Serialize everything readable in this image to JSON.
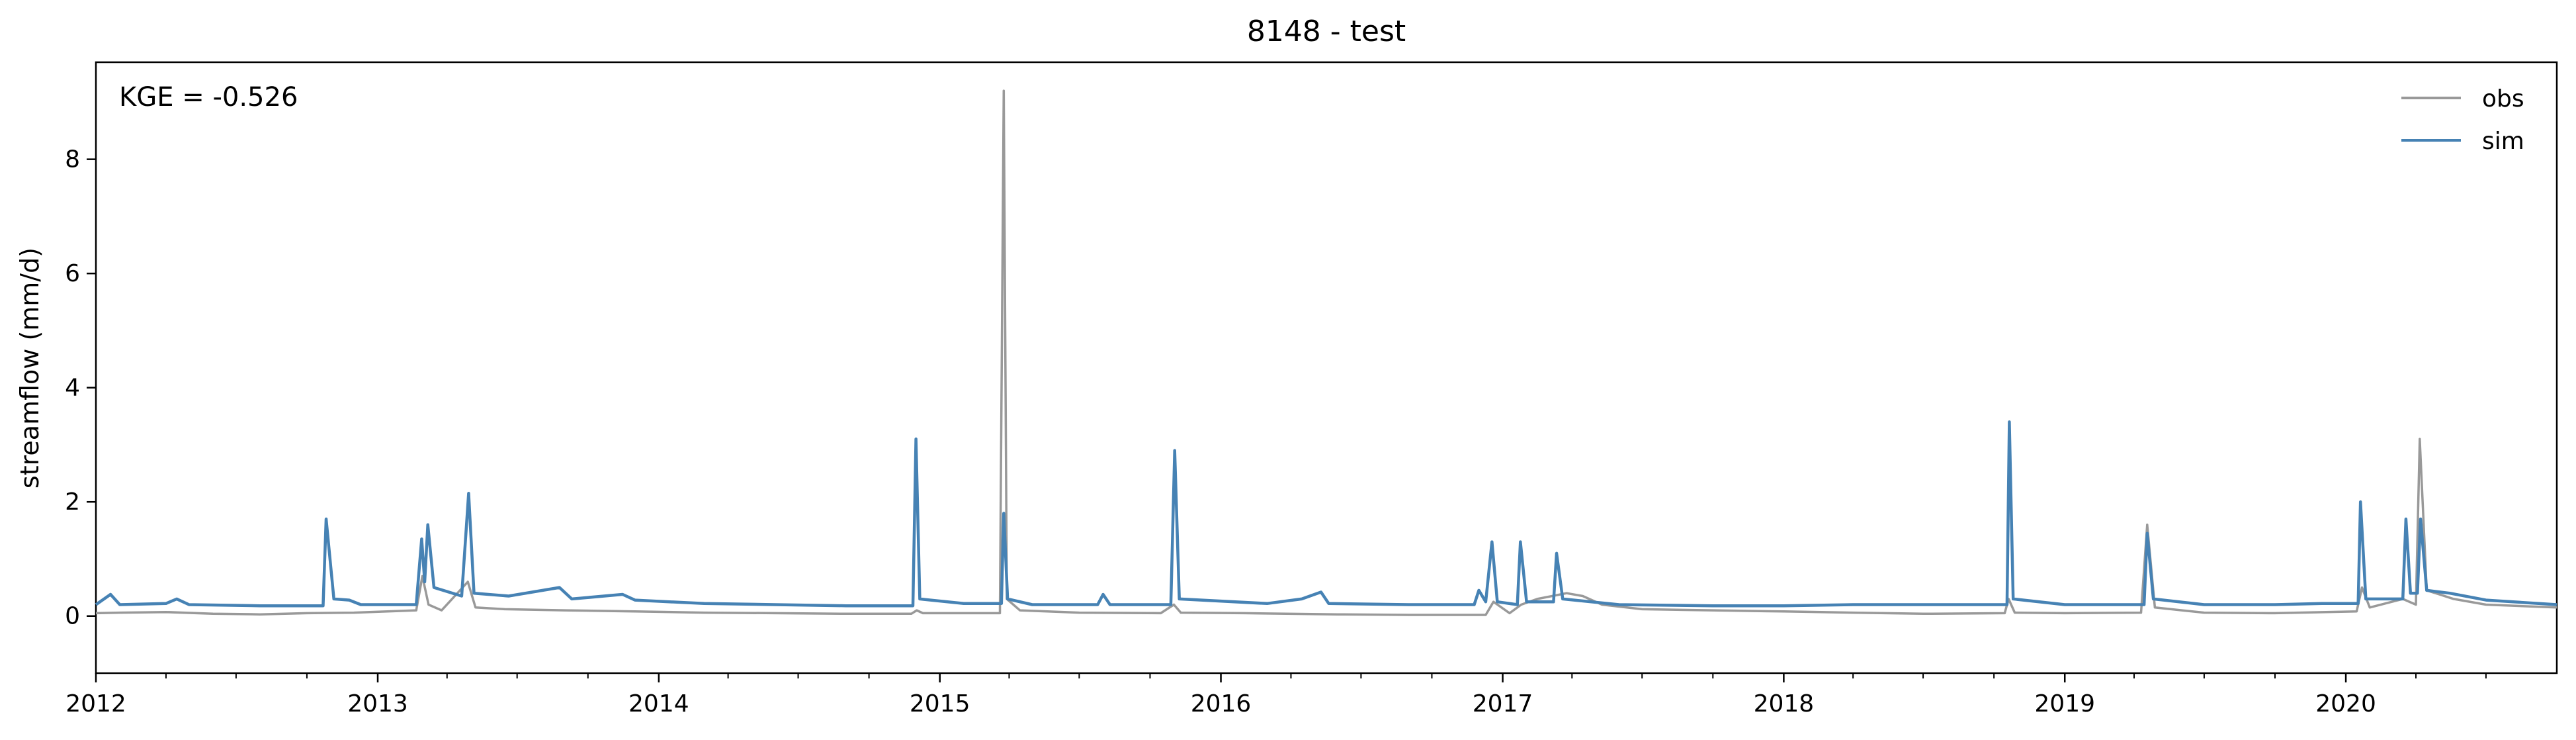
{
  "chart_data": {
    "type": "line",
    "title": "8148 - test",
    "xlabel": "",
    "ylabel": "streamflow (mm/d)",
    "annotation": "KGE = -0.526",
    "xlim": [
      "2012-01-01",
      "2020-10-01"
    ],
    "ylim": [
      -1.0,
      9.7
    ],
    "x_ticks": [
      "2012",
      "2013",
      "2014",
      "2015",
      "2016",
      "2017",
      "2018",
      "2019",
      "2020"
    ],
    "y_ticks": [
      0,
      2,
      4,
      6,
      8
    ],
    "grid": false,
    "legend_position": "top-right",
    "series": [
      {
        "name": "obs",
        "color": "#999999",
        "points": [
          [
            "2012-01-01",
            0.05
          ],
          [
            "2012-02-01",
            0.06
          ],
          [
            "2012-04-01",
            0.07
          ],
          [
            "2012-06-01",
            0.04
          ],
          [
            "2012-08-01",
            0.03
          ],
          [
            "2012-10-01",
            0.05
          ],
          [
            "2012-12-01",
            0.06
          ],
          [
            "2013-02-20",
            0.1
          ],
          [
            "2013-02-28",
            0.7
          ],
          [
            "2013-03-08",
            0.2
          ],
          [
            "2013-03-25",
            0.1
          ],
          [
            "2013-04-28",
            0.6
          ],
          [
            "2013-05-08",
            0.15
          ],
          [
            "2013-06-15",
            0.12
          ],
          [
            "2013-09-01",
            0.1
          ],
          [
            "2013-12-01",
            0.08
          ],
          [
            "2014-03-01",
            0.06
          ],
          [
            "2014-06-01",
            0.05
          ],
          [
            "2014-09-01",
            0.04
          ],
          [
            "2014-11-25",
            0.04
          ],
          [
            "2014-12-02",
            0.1
          ],
          [
            "2014-12-10",
            0.05
          ],
          [
            "2015-03-20",
            0.05
          ],
          [
            "2015-03-25",
            9.2
          ],
          [
            "2015-03-29",
            0.3
          ],
          [
            "2015-04-15",
            0.1
          ],
          [
            "2015-07-01",
            0.06
          ],
          [
            "2015-10-15",
            0.05
          ],
          [
            "2015-11-01",
            0.2
          ],
          [
            "2015-11-10",
            0.06
          ],
          [
            "2016-02-01",
            0.05
          ],
          [
            "2016-06-01",
            0.03
          ],
          [
            "2016-09-01",
            0.02
          ],
          [
            "2016-12-10",
            0.02
          ],
          [
            "2016-12-20",
            0.25
          ],
          [
            "2017-01-10",
            0.05
          ],
          [
            "2017-01-25",
            0.2
          ],
          [
            "2017-02-15",
            0.3
          ],
          [
            "2017-03-25",
            0.4
          ],
          [
            "2017-04-15",
            0.35
          ],
          [
            "2017-05-10",
            0.2
          ],
          [
            "2017-07-01",
            0.12
          ],
          [
            "2017-10-01",
            0.1
          ],
          [
            "2018-01-01",
            0.08
          ],
          [
            "2018-04-01",
            0.06
          ],
          [
            "2018-07-01",
            0.04
          ],
          [
            "2018-10-15",
            0.05
          ],
          [
            "2018-10-20",
            0.3
          ],
          [
            "2018-10-28",
            0.06
          ],
          [
            "2019-01-01",
            0.05
          ],
          [
            "2019-04-10",
            0.06
          ],
          [
            "2019-04-18",
            1.6
          ],
          [
            "2019-04-28",
            0.15
          ],
          [
            "2019-07-01",
            0.06
          ],
          [
            "2019-10-01",
            0.05
          ],
          [
            "2020-01-15",
            0.08
          ],
          [
            "2020-01-22",
            0.5
          ],
          [
            "2020-02-01",
            0.15
          ],
          [
            "2020-03-15",
            0.3
          ],
          [
            "2020-04-01",
            0.2
          ],
          [
            "2020-04-06",
            3.1
          ],
          [
            "2020-04-15",
            0.45
          ],
          [
            "2020-05-20",
            0.3
          ],
          [
            "2020-07-01",
            0.2
          ],
          [
            "2020-10-01",
            0.15
          ]
        ]
      },
      {
        "name": "sim",
        "color": "#4682b4",
        "points": [
          [
            "2012-01-01",
            0.2
          ],
          [
            "2012-01-20",
            0.38
          ],
          [
            "2012-02-01",
            0.2
          ],
          [
            "2012-04-01",
            0.22
          ],
          [
            "2012-04-15",
            0.3
          ],
          [
            "2012-05-01",
            0.2
          ],
          [
            "2012-08-01",
            0.18
          ],
          [
            "2012-10-22",
            0.18
          ],
          [
            "2012-10-26",
            1.7
          ],
          [
            "2012-11-05",
            0.3
          ],
          [
            "2012-11-25",
            0.28
          ],
          [
            "2012-12-10",
            0.2
          ],
          [
            "2013-02-20",
            0.2
          ],
          [
            "2013-02-27",
            1.35
          ],
          [
            "2013-03-03",
            0.6
          ],
          [
            "2013-03-07",
            1.6
          ],
          [
            "2013-03-15",
            0.5
          ],
          [
            "2013-04-20",
            0.35
          ],
          [
            "2013-04-29",
            2.15
          ],
          [
            "2013-05-06",
            0.4
          ],
          [
            "2013-06-20",
            0.35
          ],
          [
            "2013-08-25",
            0.5
          ],
          [
            "2013-09-10",
            0.3
          ],
          [
            "2013-11-15",
            0.38
          ],
          [
            "2013-12-01",
            0.28
          ],
          [
            "2014-03-01",
            0.22
          ],
          [
            "2014-06-01",
            0.2
          ],
          [
            "2014-09-01",
            0.18
          ],
          [
            "2014-11-27",
            0.18
          ],
          [
            "2014-12-01",
            3.1
          ],
          [
            "2014-12-06",
            0.3
          ],
          [
            "2015-02-01",
            0.22
          ],
          [
            "2015-03-22",
            0.22
          ],
          [
            "2015-03-25",
            1.8
          ],
          [
            "2015-03-30",
            0.3
          ],
          [
            "2015-05-01",
            0.2
          ],
          [
            "2015-07-25",
            0.2
          ],
          [
            "2015-08-01",
            0.38
          ],
          [
            "2015-08-10",
            0.2
          ],
          [
            "2015-10-28",
            0.2
          ],
          [
            "2015-11-02",
            2.9
          ],
          [
            "2015-11-08",
            0.3
          ],
          [
            "2016-03-01",
            0.22
          ],
          [
            "2016-04-15",
            0.3
          ],
          [
            "2016-05-10",
            0.42
          ],
          [
            "2016-05-20",
            0.22
          ],
          [
            "2016-09-01",
            0.2
          ],
          [
            "2016-11-25",
            0.2
          ],
          [
            "2016-12-01",
            0.45
          ],
          [
            "2016-12-10",
            0.25
          ],
          [
            "2016-12-18",
            1.3
          ],
          [
            "2016-12-25",
            0.25
          ],
          [
            "2017-01-20",
            0.2
          ],
          [
            "2017-01-24",
            1.3
          ],
          [
            "2017-02-01",
            0.25
          ],
          [
            "2017-03-08",
            0.25
          ],
          [
            "2017-03-12",
            1.1
          ],
          [
            "2017-03-20",
            0.3
          ],
          [
            "2017-06-01",
            0.2
          ],
          [
            "2017-10-01",
            0.18
          ],
          [
            "2018-01-01",
            0.18
          ],
          [
            "2018-04-01",
            0.2
          ],
          [
            "2018-07-01",
            0.2
          ],
          [
            "2018-10-18",
            0.2
          ],
          [
            "2018-10-21",
            3.4
          ],
          [
            "2018-10-26",
            0.3
          ],
          [
            "2019-01-01",
            0.2
          ],
          [
            "2019-04-14",
            0.2
          ],
          [
            "2019-04-18",
            1.45
          ],
          [
            "2019-04-26",
            0.3
          ],
          [
            "2019-07-01",
            0.2
          ],
          [
            "2019-10-01",
            0.2
          ],
          [
            "2019-12-01",
            0.22
          ],
          [
            "2020-01-17",
            0.22
          ],
          [
            "2020-01-20",
            2.0
          ],
          [
            "2020-01-27",
            0.3
          ],
          [
            "2020-03-15",
            0.3
          ],
          [
            "2020-03-19",
            1.7
          ],
          [
            "2020-03-25",
            0.4
          ],
          [
            "2020-04-03",
            0.4
          ],
          [
            "2020-04-07",
            1.7
          ],
          [
            "2020-04-15",
            0.45
          ],
          [
            "2020-05-15",
            0.4
          ],
          [
            "2020-07-01",
            0.28
          ],
          [
            "2020-10-01",
            0.2
          ]
        ]
      }
    ]
  }
}
